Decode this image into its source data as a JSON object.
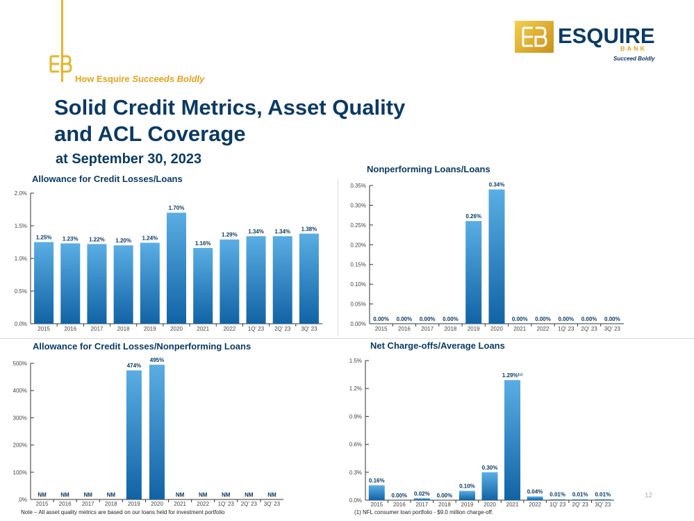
{
  "header": {
    "tagline_prefix": "How Esquire ",
    "tagline_emph": "Succeeds Boldly",
    "title_line1": "Solid Credit Metrics, Asset Quality",
    "title_line2": "and ACL Coverage",
    "subtitle": "at September 30, 2023"
  },
  "logo": {
    "word": "ESQUIRE",
    "sub": "BANK",
    "tag": "Succeed Boldly"
  },
  "colors": {
    "navy": "#0b3a63",
    "gold": "#e6a21c",
    "bar_top": "#5aaee3",
    "bar_bottom": "#1163a5"
  },
  "chart_data": [
    {
      "id": "acl-loans",
      "type": "bar",
      "title": "Allowance for Credit Losses/Loans",
      "categories": [
        "2015",
        "2016",
        "2017",
        "2018",
        "2019",
        "2020",
        "2021",
        "2022",
        "1Q' 23",
        "2Q' 23",
        "3Q' 23"
      ],
      "values": [
        1.25,
        1.23,
        1.22,
        1.2,
        1.24,
        1.7,
        1.16,
        1.29,
        1.34,
        1.34,
        1.38
      ],
      "labels": [
        "1.25%",
        "1.23%",
        "1.22%",
        "1.20%",
        "1.24%",
        "1.70%",
        "1.16%",
        "1.29%",
        "1.34%",
        "1.34%",
        "1.38%"
      ],
      "ylim": [
        0,
        2.0
      ],
      "yticks": [
        0,
        0.5,
        1.0,
        1.5,
        2.0
      ],
      "ytick_labels": [
        "0.0%",
        "0.5%",
        "1.0%",
        "1.5%",
        "2.0%"
      ]
    },
    {
      "id": "npl-loans",
      "type": "bar",
      "title": "Nonperforming Loans/Loans",
      "categories": [
        "2015",
        "2016",
        "2017",
        "2018",
        "2019",
        "2020",
        "2021",
        "2022",
        "1Q' 23",
        "2Q' 23",
        "3Q' 23"
      ],
      "values": [
        0,
        0,
        0,
        0,
        0.26,
        0.34,
        0,
        0,
        0,
        0,
        0
      ],
      "labels": [
        "0.00%",
        "0.00%",
        "0.00%",
        "0.00%",
        "0.26%",
        "0.34%",
        "0.00%",
        "0.00%",
        "0.00%",
        "0.00%",
        "0.00%"
      ],
      "ylim": [
        0,
        0.35
      ],
      "yticks": [
        0,
        0.05,
        0.1,
        0.15,
        0.2,
        0.25,
        0.3,
        0.35
      ],
      "ytick_labels": [
        "0.00%",
        "0.05%",
        "0.10%",
        "0.15%",
        "0.20%",
        "0.25%",
        "0.30%",
        "0.35%"
      ]
    },
    {
      "id": "acl-npl",
      "type": "bar",
      "title": "Allowance for Credit Losses/Nonperforming Loans",
      "categories": [
        "2015",
        "2016",
        "2017",
        "2018",
        "2019",
        "2020",
        "2021",
        "2022",
        "1Q' 23",
        "2Q' 23",
        "3Q' 23"
      ],
      "values": [
        0,
        0,
        0,
        0,
        474,
        495,
        0,
        0,
        0,
        0,
        0
      ],
      "labels": [
        "NM",
        "NM",
        "NM",
        "NM",
        "474%",
        "495%",
        "NM",
        "NM",
        "NM",
        "NM",
        "NM"
      ],
      "ylim": [
        0,
        500
      ],
      "yticks": [
        0,
        100,
        200,
        300,
        400,
        500
      ],
      "ytick_labels": [
        ".0%",
        "100%",
        "200%",
        "300%",
        "400%",
        "500%"
      ]
    },
    {
      "id": "nco-loans",
      "type": "bar",
      "title": "Net Charge-offs/Average Loans",
      "categories": [
        "2015",
        "2016",
        "2017",
        "2018",
        "2019",
        "2020",
        "2021",
        "2022",
        "1Q' 23",
        "2Q' 23",
        "3Q' 23"
      ],
      "values": [
        0.16,
        0,
        0.02,
        0,
        0.1,
        0.3,
        1.29,
        0.04,
        0.01,
        0.01,
        0.01
      ],
      "labels": [
        "0.16%",
        "0.00%",
        "0.02%",
        "0.00%",
        "0.10%",
        "0.30%",
        "1.29%⁽¹⁾",
        "0.04%",
        "0.01%",
        "0.01%",
        "0.01%"
      ],
      "ylim": [
        0,
        1.5
      ],
      "yticks": [
        0,
        0.3,
        0.6,
        0.9,
        1.2,
        1.5
      ],
      "ytick_labels": [
        "0.0%",
        "0.3%",
        "0.6%",
        "0.9%",
        "1.2%",
        "1.5%"
      ]
    }
  ],
  "notes": {
    "left": "Note – All asset quality metrics are based on our loans held for investment portfolio",
    "right": "(1) NFL consumer loan portfolio - $9.0 million charge-off."
  },
  "page_number": "12"
}
